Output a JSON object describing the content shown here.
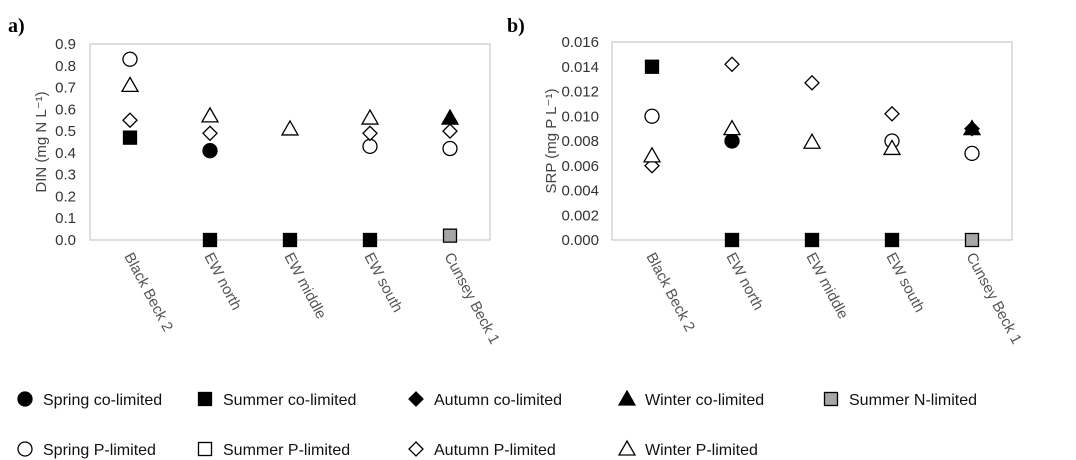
{
  "legend": [
    {
      "label": "Spring co-limited",
      "marker": "circle",
      "fill": "#000000"
    },
    {
      "label": "Summer co-limited",
      "marker": "square",
      "fill": "#000000"
    },
    {
      "label": "Autumn co-limited",
      "marker": "diamond",
      "fill": "#000000"
    },
    {
      "label": "Winter co-limited",
      "marker": "triangle",
      "fill": "#000000"
    },
    {
      "label": "Summer N-limited",
      "marker": "square",
      "fill": "#a6a6a6"
    },
    {
      "label": "Spring P-limited",
      "marker": "circle",
      "fill": "#ffffff"
    },
    {
      "label": "Summer P-limited",
      "marker": "square",
      "fill": "#ffffff"
    },
    {
      "label": "Autumn P-limited",
      "marker": "diamond",
      "fill": "#ffffff"
    },
    {
      "label": "Winter P-limited",
      "marker": "triangle",
      "fill": "#ffffff"
    }
  ],
  "chart_data": [
    {
      "type": "scatter",
      "panel_label": "a)",
      "ylabel": "DIN (mg N L⁻¹)",
      "ylim": [
        0,
        0.9
      ],
      "yticks": [
        "0.0",
        "0.1",
        "0.2",
        "0.3",
        "0.4",
        "0.5",
        "0.6",
        "0.7",
        "0.8",
        "0.9"
      ],
      "categories": [
        "Black Beck 2",
        "EW north",
        "EW middle",
        "EW south",
        "Cunsey Beck 1"
      ],
      "series": [
        {
          "name": "Spring co-limited",
          "values": [
            null,
            0.41,
            null,
            null,
            null
          ]
        },
        {
          "name": "Summer co-limited",
          "values": [
            0.47,
            0.0,
            0.0,
            0.0,
            null
          ]
        },
        {
          "name": "Autumn co-limited",
          "values": [
            null,
            null,
            null,
            null,
            null
          ]
        },
        {
          "name": "Winter co-limited",
          "values": [
            null,
            null,
            null,
            null,
            0.56
          ]
        },
        {
          "name": "Summer N-limited",
          "values": [
            null,
            null,
            null,
            null,
            0.02
          ]
        },
        {
          "name": "Spring P-limited",
          "values": [
            0.83,
            null,
            null,
            0.43,
            0.42
          ]
        },
        {
          "name": "Summer P-limited",
          "values": [
            null,
            null,
            null,
            null,
            null
          ]
        },
        {
          "name": "Autumn P-limited",
          "values": [
            0.55,
            0.49,
            null,
            0.49,
            0.5
          ]
        },
        {
          "name": "Winter P-limited",
          "values": [
            0.71,
            0.57,
            0.51,
            0.56,
            null
          ]
        }
      ]
    },
    {
      "type": "scatter",
      "panel_label": "b)",
      "ylabel": "SRP (mg P L⁻¹)",
      "ylim": [
        0,
        0.016
      ],
      "yticks": [
        "0.000",
        "0.002",
        "0.004",
        "0.006",
        "0.008",
        "0.010",
        "0.012",
        "0.014",
        "0.016"
      ],
      "categories": [
        "Black Beck 2",
        "EW north",
        "EW middle",
        "EW south",
        "Cunsey Beck 1"
      ],
      "series": [
        {
          "name": "Spring co-limited",
          "values": [
            null,
            0.008,
            null,
            null,
            null
          ]
        },
        {
          "name": "Summer co-limited",
          "values": [
            0.014,
            0.0,
            0.0,
            0.0,
            null
          ]
        },
        {
          "name": "Autumn co-limited",
          "values": [
            null,
            null,
            null,
            null,
            0.009
          ]
        },
        {
          "name": "Winter co-limited",
          "values": [
            null,
            null,
            null,
            null,
            0.009
          ]
        },
        {
          "name": "Summer N-limited",
          "values": [
            null,
            null,
            null,
            null,
            0.0
          ]
        },
        {
          "name": "Spring P-limited",
          "values": [
            0.01,
            null,
            null,
            0.008,
            0.007
          ]
        },
        {
          "name": "Summer P-limited",
          "values": [
            null,
            null,
            null,
            null,
            null
          ]
        },
        {
          "name": "Autumn P-limited",
          "values": [
            0.006,
            0.0142,
            0.0127,
            0.0102,
            null
          ]
        },
        {
          "name": "Winter P-limited",
          "values": [
            0.0068,
            0.009,
            0.0079,
            0.0074,
            null
          ]
        }
      ]
    }
  ]
}
